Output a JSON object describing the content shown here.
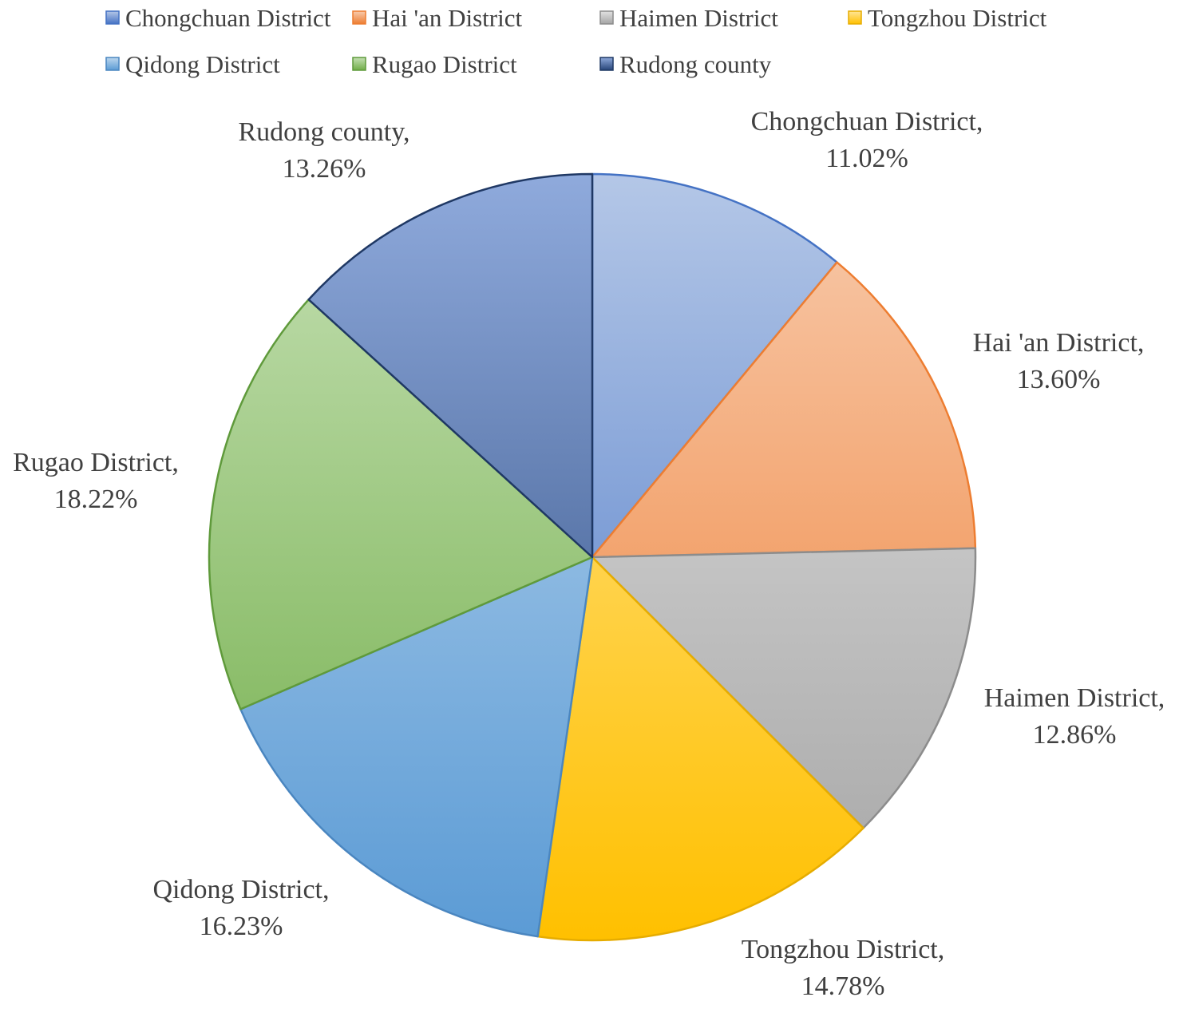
{
  "chart_data": {
    "type": "pie",
    "title": "",
    "legend_position": "top",
    "slices": [
      {
        "name": "Chongchuan District",
        "value": 11.02,
        "label": "11.02%",
        "color": "#4472C4",
        "light": "#B4C7E7",
        "stroke": "#4472C4"
      },
      {
        "name": "Hai 'an District",
        "value": 13.6,
        "label": "13.60%",
        "color": "#ED7D31",
        "light": "#F8CBAD",
        "stroke": "#ED7D31"
      },
      {
        "name": "Haimen District",
        "value": 12.86,
        "label": "12.86%",
        "color": "#A5A5A5",
        "light": "#E2E2E2",
        "stroke": "#8C8C8C"
      },
      {
        "name": "Tongzhou District",
        "value": 14.78,
        "label": "14.78%",
        "color": "#FFC000",
        "light": "#FFE699",
        "stroke": "#E6AC00"
      },
      {
        "name": "Qidong District",
        "value": 16.23,
        "label": "16.23%",
        "color": "#5B9BD5",
        "light": "#BDD7EE",
        "stroke": "#4A86C0"
      },
      {
        "name": "Rugao District",
        "value": 18.22,
        "label": "18.22%",
        "color": "#70AD47",
        "light": "#C5E0B4",
        "stroke": "#5F9A3B"
      },
      {
        "name": "Rudong county",
        "value": 13.26,
        "label": "13.26%",
        "color": "#264478",
        "light": "#8FAADC",
        "stroke": "#1F3864"
      }
    ]
  }
}
